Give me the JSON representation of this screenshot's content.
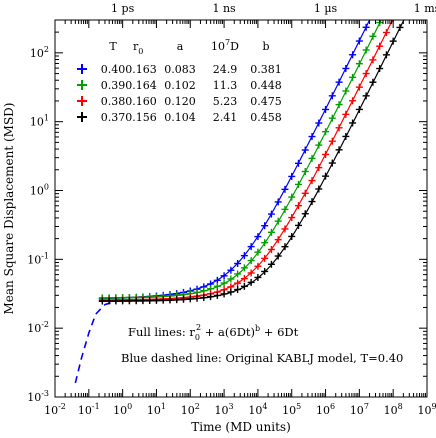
{
  "chart_data": {
    "type": "line",
    "xlabel": "Time (MD units)",
    "ylabel": "Mean Square Displacement (MSD)",
    "xscale": "log",
    "yscale": "log",
    "xlim": [
      0.01,
      1000000000
    ],
    "ylim": [
      0.001,
      300
    ],
    "x_ticks": [
      {
        "v": 0.01,
        "base": "10",
        "exp": "-2"
      },
      {
        "v": 0.1,
        "base": "10",
        "exp": "-1"
      },
      {
        "v": 1,
        "base": "10",
        "exp": "0"
      },
      {
        "v": 10,
        "base": "10",
        "exp": "1"
      },
      {
        "v": 100,
        "base": "10",
        "exp": "2"
      },
      {
        "v": 1000,
        "base": "10",
        "exp": "3"
      },
      {
        "v": 10000,
        "base": "10",
        "exp": "4"
      },
      {
        "v": 100000,
        "base": "10",
        "exp": "5"
      },
      {
        "v": 1000000,
        "base": "10",
        "exp": "6"
      },
      {
        "v": 10000000,
        "base": "10",
        "exp": "7"
      },
      {
        "v": 100000000,
        "base": "10",
        "exp": "8"
      },
      {
        "v": 1000000000,
        "base": "10",
        "exp": "9"
      }
    ],
    "y_ticks": [
      {
        "v": 0.001,
        "base": "10",
        "exp": "-3"
      },
      {
        "v": 0.01,
        "base": "10",
        "exp": "-2"
      },
      {
        "v": 0.1,
        "base": "10",
        "exp": "-1"
      },
      {
        "v": 1,
        "base": "10",
        "exp": "0"
      },
      {
        "v": 10,
        "base": "10",
        "exp": "1"
      },
      {
        "v": 100,
        "base": "10",
        "exp": "2"
      }
    ],
    "top_ticks": [
      {
        "v": 1,
        "label": "1 ps"
      },
      {
        "v": 1000,
        "label": "1 ns"
      },
      {
        "v": 1000000,
        "label": "1 µs"
      },
      {
        "v": 1000000000,
        "label": "1 ms"
      }
    ],
    "legend": {
      "headers": [
        "T",
        "r",
        "0",
        "a",
        "10",
        "7",
        "D",
        "b"
      ],
      "rows": [
        {
          "T": "0.40",
          "r0": "0.163",
          "a": "0.083",
          "D": "24.9",
          "b": "0.381",
          "color": "#0000ff"
        },
        {
          "T": "0.39",
          "r0": "0.164",
          "a": "0.102",
          "D": "11.3",
          "b": "0.448",
          "color": "#00a000"
        },
        {
          "T": "0.38",
          "r0": "0.160",
          "a": "0.120",
          "D": "5.23",
          "b": "0.475",
          "color": "#ff0000"
        },
        {
          "T": "0.37",
          "r0": "0.156",
          "a": "0.104",
          "D": "2.41",
          "b": "0.458",
          "color": "#000000"
        }
      ]
    },
    "series": [
      {
        "color": "#0000ff",
        "T": 0.4,
        "r0": 0.163,
        "a": 0.083,
        "D": 2.49e-06,
        "b": 0.381
      },
      {
        "color": "#00a000",
        "T": 0.39,
        "r0": 0.164,
        "a": 0.102,
        "D": 1.13e-06,
        "b": 0.448
      },
      {
        "color": "#ff0000",
        "T": 0.38,
        "r0": 0.16,
        "a": 0.12,
        "D": 5.23e-07,
        "b": 0.475
      },
      {
        "color": "#000000",
        "T": 0.37,
        "r0": 0.156,
        "a": 0.104,
        "D": 2.41e-07,
        "b": 0.458
      }
    ],
    "dashed_reference": {
      "color": "#0000ff",
      "x": [
        0.04,
        0.06,
        0.1,
        0.16,
        0.3,
        0.6,
        1.0
      ],
      "y": [
        0.0016,
        0.0036,
        0.0085,
        0.016,
        0.022,
        0.0245,
        0.025
      ]
    },
    "annotation_line1": {
      "prefix": "Full lines: r",
      "sub": "0",
      "sup1": "2",
      "mid": " + a(6Dt)",
      "sup2": "b",
      "suffix": " + 6Dt"
    },
    "annotation_line2": "Blue dashed line: Original KABLJ model, T=0.40"
  }
}
